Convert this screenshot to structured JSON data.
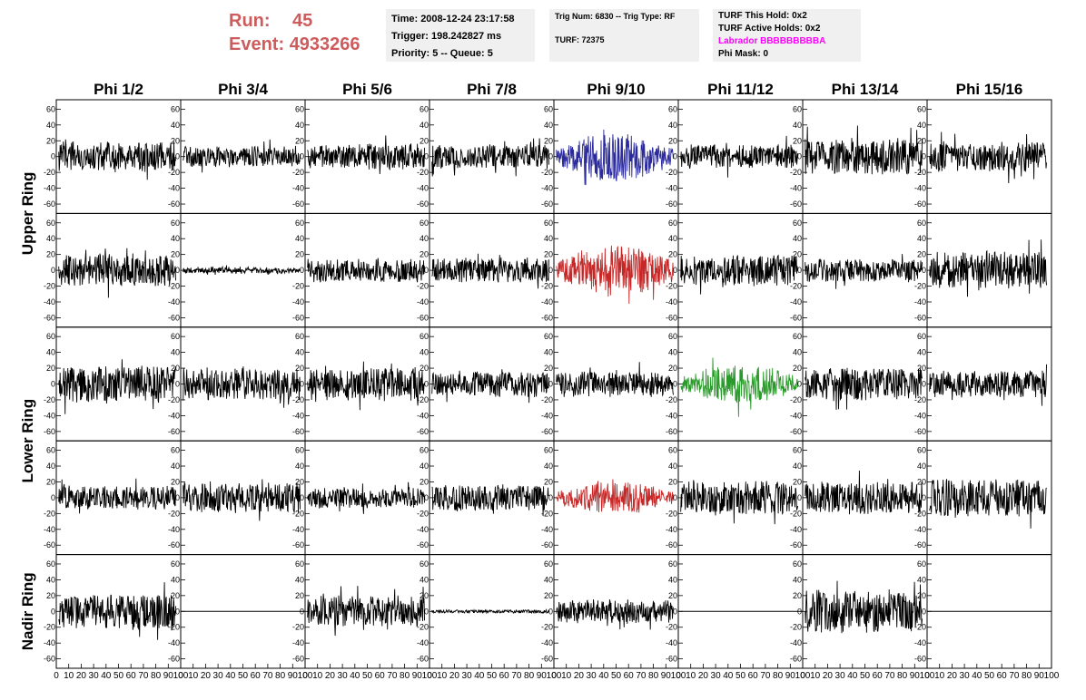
{
  "run": {
    "run_label": "Run:",
    "run_value": "45",
    "event_label": "Event:",
    "event_value": "4933266"
  },
  "time_box": {
    "time": "Time: 2008-12-24 23:17:58",
    "trigger": "Trigger: 198.242827 ms",
    "priority": "Priority: 5 -- Queue: 5"
  },
  "trig_box": {
    "trig": "Trig Num: 6830 -- Trig Type: RF",
    "turf": "TURF: 72375"
  },
  "turf_box": {
    "this_hold": "TURF This Hold: 0x2",
    "active_holds": "TURF Active Holds: 0x2",
    "labrador": "Labrador BBBBBBBBBA",
    "phi_mask": "Phi Mask: 0"
  },
  "colors": {
    "blue": "#2b2b9e",
    "red": "#c62828",
    "green": "#2a9a2a",
    "black": "#000000",
    "run_text": "#cd5c5c",
    "labrador": "#ff00ff"
  },
  "columns": [
    "Phi 1/2",
    "Phi 3/4",
    "Phi 5/6",
    "Phi 7/8",
    "Phi 9/10",
    "Phi 11/12",
    "Phi 13/14",
    "Phi 15/16"
  ],
  "rows": [
    {
      "label": "Upper Ring",
      "span": [
        0,
        1
      ]
    },
    {
      "label": "Lower Ring",
      "span": [
        2,
        3
      ]
    },
    {
      "label": "Nadir Ring",
      "span": [
        4
      ]
    }
  ],
  "y_ticks": [
    "60",
    "40",
    "20",
    "0",
    "-20",
    "-40",
    "-60"
  ],
  "x_ticks": [
    "0",
    "10",
    "20",
    "30",
    "40",
    "50",
    "60",
    "70",
    "80",
    "90",
    "100"
  ],
  "chart_data": {
    "type": "line",
    "xlim": [
      0,
      100
    ],
    "ylim": [
      -65,
      65
    ],
    "grid": [
      [
        "black",
        "black",
        "black",
        "black",
        "blue",
        "black",
        "black",
        "black"
      ],
      [
        "black",
        "black",
        "black",
        "black",
        "red",
        "black",
        "black",
        "black"
      ],
      [
        "black",
        "black",
        "black",
        "black",
        "black",
        "green",
        "black",
        "black"
      ],
      [
        "black",
        "black",
        "black",
        "black",
        "red",
        "black",
        "black",
        "black"
      ],
      [
        "black",
        "flat",
        "black",
        "black",
        "black",
        "flat",
        "black",
        "flat"
      ]
    ],
    "amplitude": [
      [
        18,
        12,
        15,
        14,
        30,
        14,
        22,
        18
      ],
      [
        20,
        3,
        14,
        15,
        32,
        18,
        14,
        24
      ],
      [
        22,
        20,
        20,
        15,
        15,
        24,
        20,
        16
      ],
      [
        14,
        18,
        12,
        16,
        20,
        20,
        20,
        24
      ],
      [
        22,
        0,
        18,
        0,
        14,
        0,
        26,
        0
      ]
    ]
  }
}
